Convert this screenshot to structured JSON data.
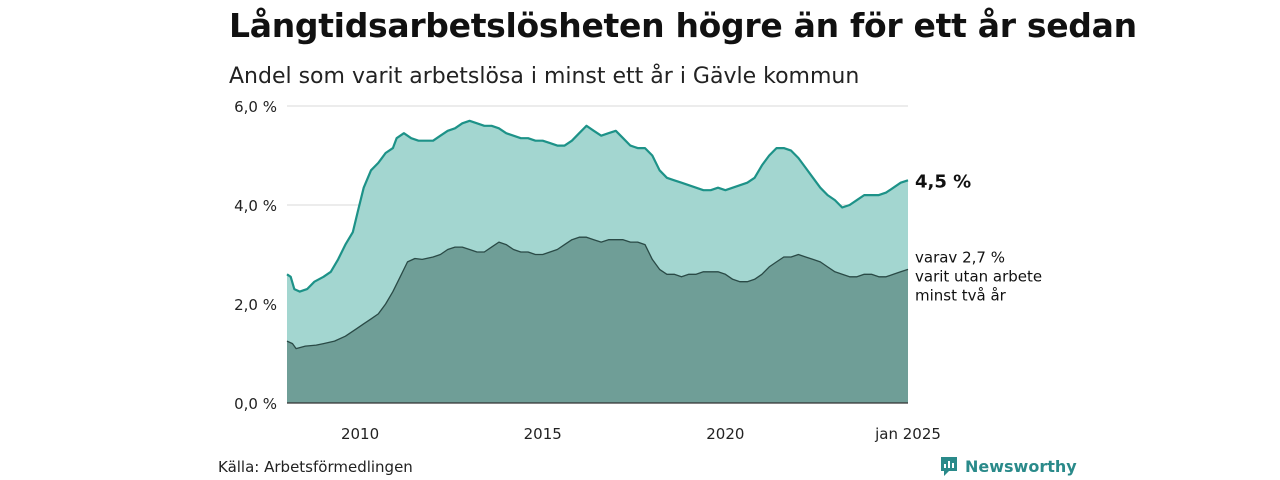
{
  "header": {
    "title": "Långtidsarbetslösheten högre än för ett år sedan",
    "subtitle": "Andel som varit arbetslösa i minst ett år i Gävle kommun"
  },
  "footer": {
    "source": "Källa: Arbetsförmedlingen",
    "brand": "Newsworthy"
  },
  "colors": {
    "total_fill": "#a3d6d0",
    "total_line": "#1d9288",
    "sub_fill": "#6f9e97",
    "sub_line": "#2a4a46",
    "grid": "#d9d9d9",
    "brand": "#2a8a8a"
  },
  "chart_data": {
    "type": "area",
    "x_unit": "year",
    "xlim": [
      2008.0,
      2025.0
    ],
    "ylim": [
      0,
      6
    ],
    "y_ticks": [
      {
        "value": 0,
        "label": "0,0 %"
      },
      {
        "value": 2,
        "label": "2,0 %"
      },
      {
        "value": 4,
        "label": "4,0 %"
      },
      {
        "value": 6,
        "label": "6,0 %"
      }
    ],
    "x_ticks": [
      {
        "value": 2010,
        "label": "2010"
      },
      {
        "value": 2015,
        "label": "2015"
      },
      {
        "value": 2020,
        "label": "2020"
      },
      {
        "value": 2025,
        "label": "jan 2025"
      }
    ],
    "grid": true,
    "series": [
      {
        "id": "total",
        "end_label": "4,5 %",
        "points": [
          [
            2008.0,
            2.6
          ],
          [
            2008.1,
            2.55
          ],
          [
            2008.2,
            2.3
          ],
          [
            2008.35,
            2.25
          ],
          [
            2008.55,
            2.3
          ],
          [
            2008.75,
            2.45
          ],
          [
            2009.0,
            2.55
          ],
          [
            2009.2,
            2.65
          ],
          [
            2009.4,
            2.9
          ],
          [
            2009.6,
            3.2
          ],
          [
            2009.8,
            3.45
          ],
          [
            2009.95,
            3.9
          ],
          [
            2010.1,
            4.35
          ],
          [
            2010.3,
            4.7
          ],
          [
            2010.5,
            4.85
          ],
          [
            2010.7,
            5.05
          ],
          [
            2010.9,
            5.15
          ],
          [
            2011.0,
            5.35
          ],
          [
            2011.2,
            5.45
          ],
          [
            2011.4,
            5.35
          ],
          [
            2011.6,
            5.3
          ],
          [
            2011.8,
            5.3
          ],
          [
            2012.0,
            5.3
          ],
          [
            2012.2,
            5.4
          ],
          [
            2012.4,
            5.5
          ],
          [
            2012.6,
            5.55
          ],
          [
            2012.8,
            5.65
          ],
          [
            2013.0,
            5.7
          ],
          [
            2013.2,
            5.65
          ],
          [
            2013.4,
            5.6
          ],
          [
            2013.6,
            5.6
          ],
          [
            2013.8,
            5.55
          ],
          [
            2014.0,
            5.45
          ],
          [
            2014.2,
            5.4
          ],
          [
            2014.4,
            5.35
          ],
          [
            2014.6,
            5.35
          ],
          [
            2014.8,
            5.3
          ],
          [
            2015.0,
            5.3
          ],
          [
            2015.2,
            5.25
          ],
          [
            2015.4,
            5.2
          ],
          [
            2015.6,
            5.2
          ],
          [
            2015.8,
            5.3
          ],
          [
            2016.0,
            5.45
          ],
          [
            2016.2,
            5.6
          ],
          [
            2016.4,
            5.5
          ],
          [
            2016.6,
            5.4
          ],
          [
            2016.8,
            5.45
          ],
          [
            2017.0,
            5.5
          ],
          [
            2017.2,
            5.35
          ],
          [
            2017.4,
            5.2
          ],
          [
            2017.6,
            5.15
          ],
          [
            2017.8,
            5.15
          ],
          [
            2018.0,
            5.0
          ],
          [
            2018.2,
            4.7
          ],
          [
            2018.4,
            4.55
          ],
          [
            2018.6,
            4.5
          ],
          [
            2018.8,
            4.45
          ],
          [
            2019.0,
            4.4
          ],
          [
            2019.2,
            4.35
          ],
          [
            2019.4,
            4.3
          ],
          [
            2019.6,
            4.3
          ],
          [
            2019.8,
            4.35
          ],
          [
            2020.0,
            4.3
          ],
          [
            2020.2,
            4.35
          ],
          [
            2020.4,
            4.4
          ],
          [
            2020.6,
            4.45
          ],
          [
            2020.8,
            4.55
          ],
          [
            2021.0,
            4.8
          ],
          [
            2021.2,
            5.0
          ],
          [
            2021.4,
            5.15
          ],
          [
            2021.6,
            5.15
          ],
          [
            2021.8,
            5.1
          ],
          [
            2022.0,
            4.95
          ],
          [
            2022.2,
            4.75
          ],
          [
            2022.4,
            4.55
          ],
          [
            2022.6,
            4.35
          ],
          [
            2022.8,
            4.2
          ],
          [
            2023.0,
            4.1
          ],
          [
            2023.2,
            3.95
          ],
          [
            2023.4,
            4.0
          ],
          [
            2023.6,
            4.1
          ],
          [
            2023.8,
            4.2
          ],
          [
            2024.0,
            4.2
          ],
          [
            2024.2,
            4.2
          ],
          [
            2024.4,
            4.25
          ],
          [
            2024.6,
            4.35
          ],
          [
            2024.8,
            4.45
          ],
          [
            2025.0,
            4.5
          ]
        ]
      },
      {
        "id": "sub",
        "end_label_lines": [
          "varav 2,7 %",
          "varit utan arbete",
          "minst två år"
        ],
        "points": [
          [
            2008.0,
            1.25
          ],
          [
            2008.15,
            1.2
          ],
          [
            2008.25,
            1.1
          ],
          [
            2008.5,
            1.15
          ],
          [
            2008.8,
            1.17
          ],
          [
            2009.0,
            1.2
          ],
          [
            2009.3,
            1.25
          ],
          [
            2009.6,
            1.35
          ],
          [
            2009.9,
            1.5
          ],
          [
            2010.1,
            1.6
          ],
          [
            2010.3,
            1.7
          ],
          [
            2010.5,
            1.8
          ],
          [
            2010.7,
            2.0
          ],
          [
            2010.9,
            2.25
          ],
          [
            2011.1,
            2.55
          ],
          [
            2011.3,
            2.85
          ],
          [
            2011.5,
            2.92
          ],
          [
            2011.7,
            2.9
          ],
          [
            2012.0,
            2.95
          ],
          [
            2012.2,
            3.0
          ],
          [
            2012.4,
            3.1
          ],
          [
            2012.6,
            3.15
          ],
          [
            2012.8,
            3.15
          ],
          [
            2013.0,
            3.1
          ],
          [
            2013.2,
            3.05
          ],
          [
            2013.4,
            3.05
          ],
          [
            2013.6,
            3.15
          ],
          [
            2013.8,
            3.25
          ],
          [
            2014.0,
            3.2
          ],
          [
            2014.2,
            3.1
          ],
          [
            2014.4,
            3.05
          ],
          [
            2014.6,
            3.05
          ],
          [
            2014.8,
            3.0
          ],
          [
            2015.0,
            3.0
          ],
          [
            2015.2,
            3.05
          ],
          [
            2015.4,
            3.1
          ],
          [
            2015.6,
            3.2
          ],
          [
            2015.8,
            3.3
          ],
          [
            2016.0,
            3.35
          ],
          [
            2016.2,
            3.35
          ],
          [
            2016.4,
            3.3
          ],
          [
            2016.6,
            3.25
          ],
          [
            2016.8,
            3.3
          ],
          [
            2017.0,
            3.3
          ],
          [
            2017.2,
            3.3
          ],
          [
            2017.4,
            3.25
          ],
          [
            2017.6,
            3.25
          ],
          [
            2017.8,
            3.2
          ],
          [
            2018.0,
            2.9
          ],
          [
            2018.2,
            2.7
          ],
          [
            2018.4,
            2.6
          ],
          [
            2018.6,
            2.6
          ],
          [
            2018.8,
            2.55
          ],
          [
            2019.0,
            2.6
          ],
          [
            2019.2,
            2.6
          ],
          [
            2019.4,
            2.65
          ],
          [
            2019.6,
            2.65
          ],
          [
            2019.8,
            2.65
          ],
          [
            2020.0,
            2.6
          ],
          [
            2020.2,
            2.5
          ],
          [
            2020.4,
            2.45
          ],
          [
            2020.6,
            2.45
          ],
          [
            2020.8,
            2.5
          ],
          [
            2021.0,
            2.6
          ],
          [
            2021.2,
            2.75
          ],
          [
            2021.4,
            2.85
          ],
          [
            2021.6,
            2.95
          ],
          [
            2021.8,
            2.95
          ],
          [
            2022.0,
            3.0
          ],
          [
            2022.2,
            2.95
          ],
          [
            2022.4,
            2.9
          ],
          [
            2022.6,
            2.85
          ],
          [
            2022.8,
            2.75
          ],
          [
            2023.0,
            2.65
          ],
          [
            2023.2,
            2.6
          ],
          [
            2023.4,
            2.55
          ],
          [
            2023.6,
            2.55
          ],
          [
            2023.8,
            2.6
          ],
          [
            2024.0,
            2.6
          ],
          [
            2024.2,
            2.55
          ],
          [
            2024.4,
            2.55
          ],
          [
            2024.6,
            2.6
          ],
          [
            2024.8,
            2.65
          ],
          [
            2025.0,
            2.7
          ]
        ]
      }
    ]
  }
}
